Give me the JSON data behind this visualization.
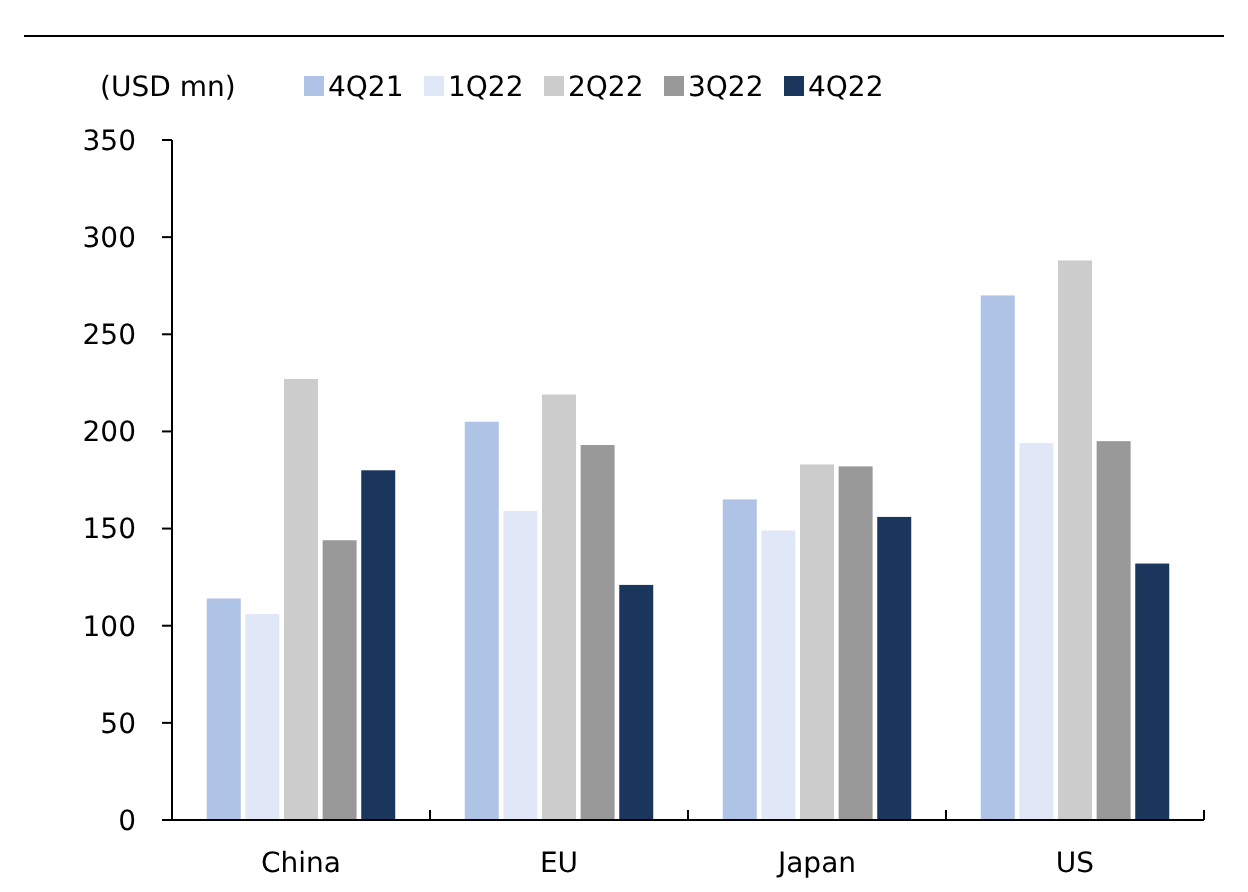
{
  "chart_data": {
    "type": "bar",
    "ylabel": "(USD mn)",
    "categories": [
      "China",
      "EU",
      "Japan",
      "US"
    ],
    "series": [
      {
        "name": "4Q21",
        "color": "#aec3e6",
        "values": [
          114,
          205,
          165,
          270
        ]
      },
      {
        "name": "1Q22",
        "color": "#e0e7f7",
        "values": [
          106,
          159,
          149,
          194
        ]
      },
      {
        "name": "2Q22",
        "color": "#cccccc",
        "values": [
          227,
          219,
          183,
          288
        ]
      },
      {
        "name": "3Q22",
        "color": "#999999",
        "values": [
          144,
          193,
          182,
          195
        ]
      },
      {
        "name": "4Q22",
        "color": "#1a365d",
        "values": [
          180,
          121,
          156,
          132
        ]
      }
    ],
    "ylim": [
      0,
      350
    ],
    "yticks": [
      0,
      50,
      100,
      150,
      200,
      250,
      300,
      350
    ],
    "grid": false,
    "legend": "top"
  }
}
